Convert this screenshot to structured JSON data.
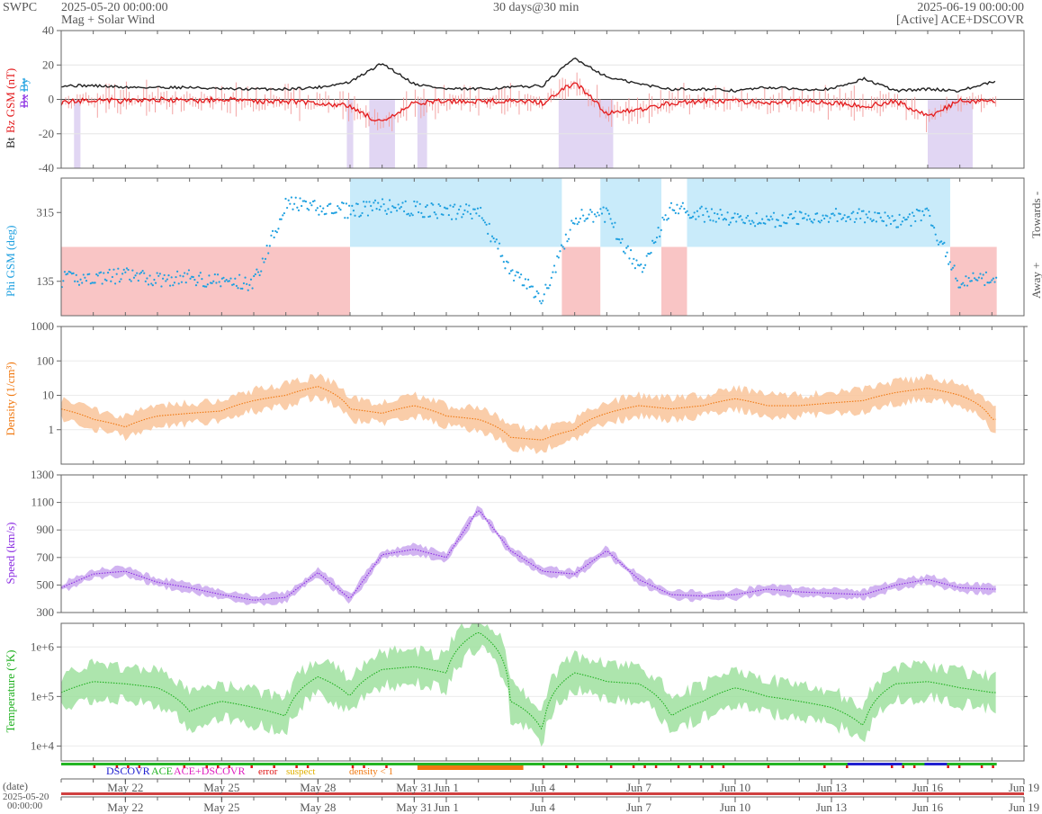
{
  "header": {
    "agency": "SWPC",
    "start": "2025-05-20 00:00:00",
    "subtitle": "Mag + Solar Wind",
    "span": "30 days@30 min",
    "end": "2025-06-19 00:00:00",
    "source": "[Active] ACE+DSCOVR"
  },
  "colors": {
    "bt": "#222222",
    "bz": "#e31a1c",
    "bx": "#8a2be2",
    "by": "#1ea0e0",
    "phi": "#1ea0e0",
    "phi_towards_band": "#c9ebfa",
    "phi_away_band": "#f9c5c5",
    "density": "#f07810",
    "density_band": "#f9c49a",
    "speed": "#8a2be2",
    "speed_band": "#c9a6ee",
    "temperature": "#1fb01f",
    "temperature_band": "#9fe09f",
    "bz_negative_band": "#d9ccf0",
    "ace": "#22b422",
    "dscovr": "#2020d0",
    "error": "#e01010",
    "suspect": "#e0b000",
    "density_low": "#f07810",
    "acedscovr": "#e020c0"
  },
  "chart_data": [
    {
      "type": "line",
      "panel": "mag",
      "ylabel_parts": [
        "Bt",
        "Bz GSM (nT)",
        "Bx",
        "By"
      ],
      "ylim": [
        -40,
        40
      ],
      "yticks": [
        "40",
        "20",
        "0",
        "-20",
        "-40"
      ],
      "x": [
        0,
        1,
        2,
        3,
        4,
        5,
        6,
        7,
        8,
        9,
        10,
        11,
        12,
        13,
        14,
        15,
        16,
        17,
        18,
        19,
        20,
        21,
        22,
        23,
        24,
        25,
        26,
        27,
        28,
        29
      ],
      "series": [
        {
          "name": "Bt",
          "values": [
            8,
            8,
            7,
            7,
            7,
            6,
            6,
            6,
            7,
            10,
            21,
            9,
            6,
            6,
            7,
            8,
            24,
            13,
            9,
            6,
            6,
            5,
            7,
            6,
            6,
            12,
            5,
            6,
            5,
            10
          ]
        },
        {
          "name": "Bz",
          "values": [
            -2,
            0,
            -1,
            0,
            -1,
            0,
            -1,
            -1,
            -2,
            -4,
            -14,
            -2,
            -1,
            -1,
            -1,
            -2,
            10,
            -8,
            -6,
            -2,
            -1,
            -1,
            -2,
            -1,
            -2,
            -4,
            -1,
            -10,
            -1,
            -1
          ]
        }
      ]
    },
    {
      "type": "scatter",
      "panel": "phi",
      "ylabel": "Phi GSM (deg)",
      "ylim": [
        45,
        405
      ],
      "yticks": [
        "315",
        "135"
      ],
      "right_labels": [
        "Towards -",
        "Away +"
      ],
      "x": [
        0,
        1,
        2,
        3,
        4,
        5,
        6,
        7,
        8,
        9,
        10,
        11,
        12,
        13,
        14,
        15,
        16,
        17,
        18,
        19,
        20,
        21,
        22,
        23,
        24,
        25,
        26,
        27,
        28,
        29
      ],
      "values": [
        140,
        145,
        150,
        140,
        145,
        135,
        130,
        340,
        325,
        320,
        330,
        325,
        315,
        320,
        160,
        90,
        300,
        310,
        160,
        330,
        310,
        300,
        295,
        300,
        310,
        305,
        290,
        310,
        130,
        145
      ]
    },
    {
      "type": "line",
      "panel": "density",
      "ylabel": "Density (1/cm³)",
      "ylim": [
        0.1,
        1000
      ],
      "log": true,
      "yticks": [
        "1000",
        "100",
        "10",
        "1"
      ],
      "x": [
        0,
        1,
        2,
        3,
        4,
        5,
        6,
        7,
        8,
        9,
        10,
        11,
        12,
        13,
        14,
        15,
        16,
        17,
        18,
        19,
        20,
        21,
        22,
        23,
        24,
        25,
        26,
        27,
        28,
        29
      ],
      "values": [
        4,
        2,
        1.2,
        2.5,
        3,
        3.5,
        7,
        10,
        18,
        4,
        3,
        5,
        2.5,
        2,
        0.6,
        0.5,
        1,
        3,
        5,
        4,
        5,
        8,
        5,
        5,
        6,
        7,
        12,
        16,
        10,
        2
      ]
    },
    {
      "type": "line",
      "panel": "speed",
      "ylabel": "Speed (km/s)",
      "ylim": [
        300,
        1300
      ],
      "yticks": [
        "1300",
        "1100",
        "900",
        "700",
        "500",
        "300"
      ],
      "x": [
        0,
        1,
        2,
        3,
        4,
        5,
        6,
        7,
        8,
        9,
        10,
        11,
        12,
        13,
        14,
        15,
        16,
        17,
        18,
        19,
        20,
        21,
        22,
        23,
        24,
        25,
        26,
        27,
        28,
        29
      ],
      "values": [
        480,
        580,
        600,
        520,
        480,
        430,
        390,
        410,
        590,
        400,
        720,
        760,
        700,
        1050,
        750,
        600,
        580,
        750,
        540,
        430,
        420,
        430,
        470,
        450,
        440,
        430,
        500,
        540,
        480,
        470
      ]
    },
    {
      "type": "line",
      "panel": "temperature",
      "ylabel": "Temperature (°K)",
      "ylim": [
        5000,
        3000000
      ],
      "log": true,
      "yticks": [
        "1e+6",
        "1e+5",
        "1e+4"
      ],
      "x": [
        0,
        1,
        2,
        3,
        4,
        5,
        6,
        7,
        8,
        9,
        10,
        11,
        12,
        13,
        14,
        15,
        16,
        17,
        18,
        19,
        20,
        21,
        22,
        23,
        24,
        25,
        26,
        27,
        28,
        29
      ],
      "values": [
        120000,
        200000,
        180000,
        150000,
        50000,
        80000,
        60000,
        40000,
        250000,
        100000,
        350000,
        400000,
        300000,
        2000000,
        80000,
        20000,
        300000,
        200000,
        180000,
        40000,
        80000,
        150000,
        100000,
        80000,
        60000,
        25000,
        180000,
        200000,
        150000,
        120000
      ]
    }
  ],
  "legend": {
    "dscovr": "DSCOVR",
    "ace": "ACE",
    "acedscovr": "ACE+DSCOVR",
    "error": "error",
    "suspect": "suspect",
    "density_low": "density < 1"
  },
  "xaxis": {
    "date_label": "(date)",
    "start_date": "2025-05-20",
    "start_time": "00:00:00",
    "ticks": [
      {
        "label": "May 22",
        "day": 2
      },
      {
        "label": "May 25",
        "day": 5
      },
      {
        "label": "May 28",
        "day": 8
      },
      {
        "label": "May 31",
        "day": 11
      },
      {
        "label": "Jun 1",
        "day": 12
      },
      {
        "label": "Jun 4",
        "day": 15
      },
      {
        "label": "Jun 7",
        "day": 18
      },
      {
        "label": "Jun 10",
        "day": 21
      },
      {
        "label": "Jun 13",
        "day": 24
      },
      {
        "label": "Jun 16",
        "day": 27
      },
      {
        "label": "Jun 19",
        "day": 30
      }
    ]
  }
}
